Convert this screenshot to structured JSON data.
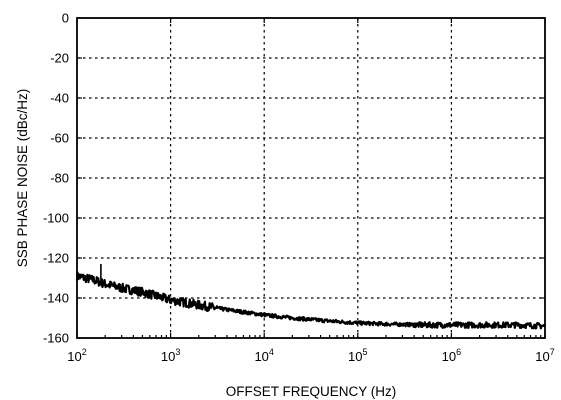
{
  "chart_data": {
    "type": "line",
    "title": "",
    "xlabel": "OFFSET FREQUENCY (Hz)",
    "ylabel": "SSB PHASE NOISE (dBc/Hz)",
    "x_scale": "log",
    "xlim": [
      100,
      10000000
    ],
    "ylim": [
      -160,
      0
    ],
    "grid": true,
    "x_ticks": [
      {
        "base": "10",
        "exp": "2",
        "value": 100
      },
      {
        "base": "10",
        "exp": "3",
        "value": 1000
      },
      {
        "base": "10",
        "exp": "4",
        "value": 10000
      },
      {
        "base": "10",
        "exp": "5",
        "value": 100000
      },
      {
        "base": "10",
        "exp": "6",
        "value": 1000000
      },
      {
        "base": "10",
        "exp": "7",
        "value": 10000000
      }
    ],
    "y_ticks": [
      "0",
      "-20",
      "-40",
      "-60",
      "-80",
      "-100",
      "-120",
      "-140",
      "-160"
    ],
    "y_tick_values": [
      0,
      -20,
      -40,
      -60,
      -80,
      -100,
      -120,
      -140,
      -160
    ],
    "series": [
      {
        "x": [
          100,
          150,
          200,
          300,
          500,
          700,
          1000,
          2000,
          3000,
          5000,
          10000,
          20000,
          50000,
          100000,
          200000,
          500000,
          1000000,
          2000000,
          5000000,
          10000000
        ],
        "y": [
          -129,
          -131,
          -133,
          -135,
          -137,
          -139,
          -141,
          -143.5,
          -145,
          -146.5,
          -148.5,
          -150,
          -151.5,
          -152.5,
          -153,
          -153.5,
          -153.5,
          -153.5,
          -153.5,
          -154
        ],
        "spikes": [
          {
            "x": 180,
            "y": -123
          }
        ]
      }
    ]
  }
}
